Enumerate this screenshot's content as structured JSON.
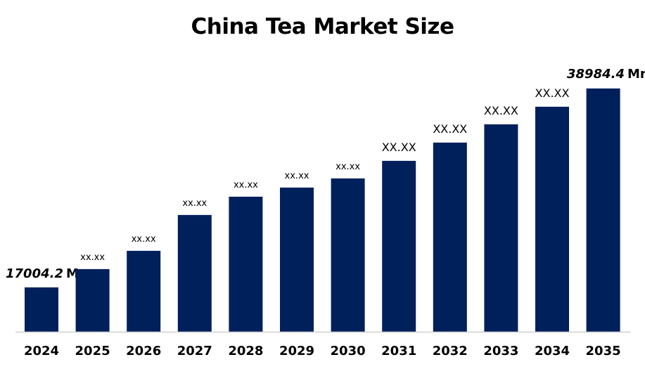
{
  "chart_data": {
    "type": "bar",
    "title": "China Tea Market Size",
    "categories": [
      "2024",
      "2025",
      "2026",
      "2027",
      "2028",
      "2029",
      "2030",
      "2031",
      "2032",
      "2033",
      "2034",
      "2035"
    ],
    "values": [
      17004.2,
      19024,
      21043,
      25004,
      27024,
      28033,
      29043,
      30985,
      33004,
      35023,
      36965,
      38984.4
    ],
    "data_labels": [
      "17004.2",
      "xx.xx",
      "xx.xx",
      "xx.xx",
      "xx.xx",
      "xx.xx",
      "xx.xx",
      "XX.XX",
      "XX.XX",
      "XX.XX",
      "XX.XX",
      "38984.4"
    ],
    "unit_suffix": "Mn",
    "xlabel": "",
    "ylabel": "",
    "ylim": [
      12100,
      40000
    ],
    "grid": false,
    "legend": "none",
    "colors": {
      "bar": "#00205B",
      "axis": "#d0d0d0"
    }
  }
}
